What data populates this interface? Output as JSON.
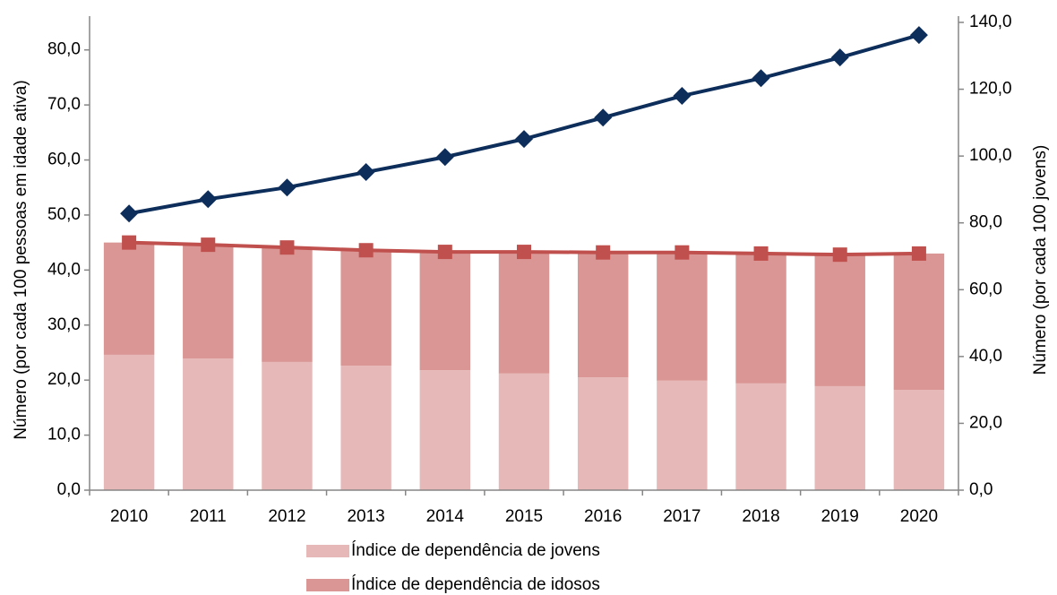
{
  "chart_data": {
    "type": "bar",
    "stacked": true,
    "categories": [
      "2010",
      "2011",
      "2012",
      "2013",
      "2014",
      "2015",
      "2016",
      "2017",
      "2018",
      "2019",
      "2020"
    ],
    "ylabel": "Número (por cada 100 pessoas em idade ativa)",
    "y2label": "Número (por cada 100 jovens)",
    "ylim": [
      0,
      85
    ],
    "yticks": [
      {
        "value": 0,
        "label": "0,0"
      },
      {
        "value": 10,
        "label": "10,0"
      },
      {
        "value": 20,
        "label": "20,0"
      },
      {
        "value": 30,
        "label": "30,0"
      },
      {
        "value": 40,
        "label": "40,0"
      },
      {
        "value": 50,
        "label": "50,0"
      },
      {
        "value": 60,
        "label": "60,0"
      },
      {
        "value": 70,
        "label": "70,0"
      },
      {
        "value": 80,
        "label": "80,0"
      }
    ],
    "y2lim": [
      0,
      140
    ],
    "y2ticks": [
      {
        "value": 0,
        "label": "0,0"
      },
      {
        "value": 20,
        "label": "20,0"
      },
      {
        "value": 40,
        "label": "40,0"
      },
      {
        "value": 60,
        "label": "60,0"
      },
      {
        "value": 80,
        "label": "80,0"
      },
      {
        "value": 100,
        "label": "100,0"
      },
      {
        "value": 120,
        "label": "120,0"
      },
      {
        "value": 140,
        "label": "140,0"
      }
    ],
    "series": [
      {
        "name": "Índice de dependência de jovens",
        "type": "bar",
        "color": "#e6b9b8",
        "values": [
          24.6,
          23.9,
          23.3,
          22.6,
          21.8,
          21.2,
          20.5,
          19.9,
          19.4,
          18.9,
          18.2
        ]
      },
      {
        "name": "Índice de dependência de idosos",
        "type": "bar",
        "color": "#d99694",
        "values": [
          20.4,
          20.7,
          20.8,
          21.0,
          21.5,
          22.1,
          22.7,
          23.3,
          23.6,
          23.9,
          24.8
        ]
      },
      {
        "type": "line",
        "marker": "square",
        "color": "#c0504d",
        "values": [
          45.0,
          44.6,
          44.1,
          43.6,
          43.3,
          43.3,
          43.2,
          43.2,
          43.0,
          42.8,
          43.0
        ]
      },
      {
        "type": "line",
        "marker": "diamond",
        "axis": "y2",
        "color": "#0d2d5a",
        "values": [
          82.8,
          87.1,
          90.6,
          95.2,
          99.7,
          105.1,
          111.5,
          118.0,
          123.3,
          129.5,
          136.2
        ]
      }
    ]
  }
}
